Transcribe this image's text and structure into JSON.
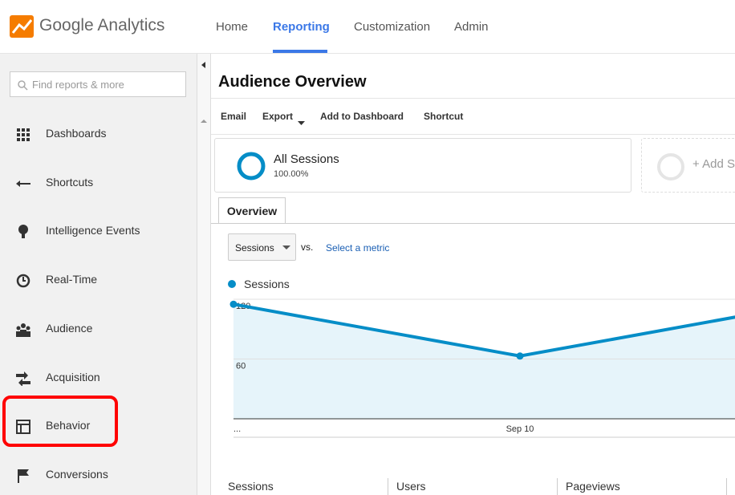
{
  "header": {
    "logo": "Google Analytics",
    "nav": [
      "Home",
      "Reporting",
      "Customization",
      "Admin"
    ],
    "active_nav": 1
  },
  "sidebar": {
    "search_placeholder": "Find reports & more",
    "items": [
      "Dashboards",
      "Shortcuts",
      "Intelligence Events",
      "Real-Time",
      "Audience",
      "Acquisition",
      "Behavior",
      "Conversions"
    ],
    "highlighted_item": 6
  },
  "main": {
    "title": "Audience Overview",
    "toolbar": [
      "Email",
      "Export",
      "Add to Dashboard",
      "Shortcut"
    ],
    "segment": {
      "name": "All Sessions",
      "share": "100.00%"
    },
    "add_segment": "+ Add Segment",
    "tab": "Overview",
    "metric": "Sessions",
    "vs": "vs.",
    "select_metric": "Select a metric",
    "summary": [
      "Sessions",
      "Users",
      "Pageviews"
    ]
  },
  "chart_data": {
    "type": "area",
    "categories": [
      "...",
      "Sep 10",
      null
    ],
    "series": [
      {
        "name": "Sessions",
        "color": "#058dc7",
        "values": [
          115,
          63,
          115
        ]
      }
    ],
    "ylim": [
      0,
      120
    ],
    "yticks": [
      60,
      120
    ],
    "grid": true
  }
}
